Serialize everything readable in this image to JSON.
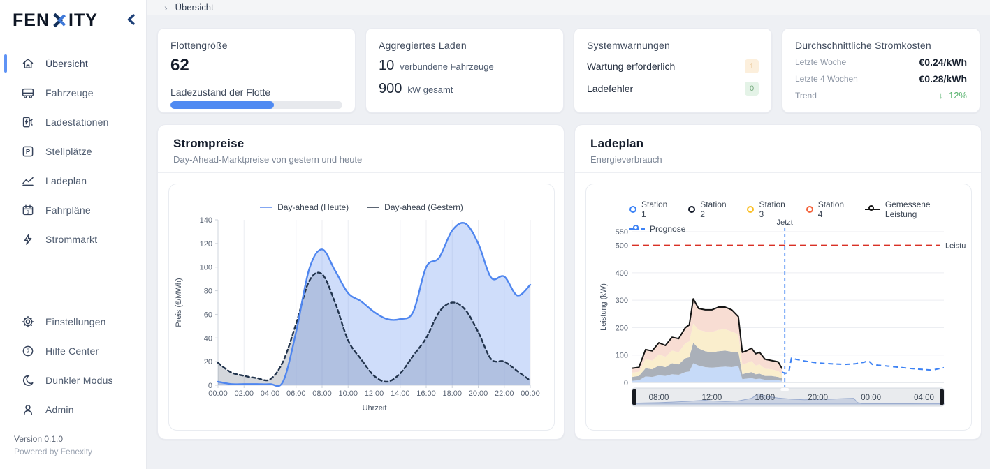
{
  "colors": {
    "accent_blue": "#4f8af2",
    "active_indicator": "#5f93f5",
    "badge_warn_bg": "#fcefdc",
    "badge_warn_fg": "#d79b4a",
    "badge_ok_bg": "#e4f3e7",
    "badge_ok_fg": "#74a87c",
    "trend_green": "#57b26d",
    "limit_red": "#d93025"
  },
  "sidebar": {
    "logo_left": "FEN",
    "logo_right": "ITY",
    "menu": [
      {
        "icon": "home-icon",
        "label": "Übersicht",
        "active": true
      },
      {
        "icon": "bus-icon",
        "label": "Fahrzeuge",
        "active": false
      },
      {
        "icon": "charging-station-icon",
        "label": "Ladestationen",
        "active": false
      },
      {
        "icon": "parking-icon",
        "label": "Stellplätze",
        "active": false
      },
      {
        "icon": "area-chart-icon",
        "label": "Ladeplan",
        "active": false
      },
      {
        "icon": "calendar-icon",
        "label": "Fahrpläne",
        "active": false
      },
      {
        "icon": "bolt-icon",
        "label": "Strommarkt",
        "active": false
      }
    ],
    "footer_menu": [
      {
        "icon": "gear-icon",
        "label": "Einstellungen"
      },
      {
        "icon": "help-icon",
        "label": "Hilfe Center"
      },
      {
        "icon": "moon-icon",
        "label": "Dunkler Modus"
      },
      {
        "icon": "user-icon",
        "label": "Admin"
      }
    ],
    "version": "Version 0.1.0",
    "powered": "Powered by Fenexity"
  },
  "topbar": {
    "breadcrumb": "Übersicht"
  },
  "cards": {
    "fleet": {
      "title": "Flottengröße",
      "value": "62",
      "progress_label": "Ladezustand der Flotte",
      "progress_css": "60%"
    },
    "charging": {
      "title": "Aggregiertes Laden",
      "vehicles_value": "10",
      "vehicles_label": "verbundene Fahrzeuge",
      "power_value": "900",
      "power_label": "kW gesamt"
    },
    "warnings": {
      "title": "Systemwarnungen",
      "rows": [
        {
          "label": "Wartung erforderlich",
          "value": "1",
          "type": "warn"
        },
        {
          "label": "Ladefehler",
          "value": "0",
          "type": "ok"
        }
      ]
    },
    "costs": {
      "title": "Durchschnittliche Stromkosten",
      "rows": [
        {
          "label": "Letzte Woche",
          "value": "€0.24/kWh"
        },
        {
          "label": "Letzte 4 Wochen",
          "value": "€0.28/kWh"
        }
      ],
      "trend_label": "Trend",
      "trend_value": "↓ -12%"
    }
  },
  "price_chart": {
    "title": "Strompreise",
    "subtitle": "Day-Ahead-Marktpreise von gestern und heute"
  },
  "load_chart": {
    "title": "Ladeplan",
    "subtitle": "Energieverbrauch"
  },
  "chart_data": [
    {
      "id": "strompreise",
      "type": "area",
      "title": "Strompreise",
      "xlabel": "Uhrzeit",
      "ylabel": "Preis (€/MWh)",
      "ylim": [
        0,
        140
      ],
      "y_ticks": [
        0,
        20,
        40,
        60,
        80,
        100,
        120,
        140
      ],
      "x": [
        0,
        1,
        2,
        3,
        4,
        5,
        6,
        7,
        8,
        9,
        10,
        11,
        12,
        13,
        14,
        15,
        16,
        17,
        18,
        19,
        20,
        21,
        22,
        23,
        24
      ],
      "x_ticks": [
        0,
        2,
        4,
        6,
        8,
        10,
        12,
        14,
        16,
        18,
        20,
        22,
        24
      ],
      "x_tick_labels": [
        "00:00",
        "02:00",
        "04:00",
        "06:00",
        "08:00",
        "10:00",
        "12:00",
        "14:00",
        "16:00",
        "18:00",
        "20:00",
        "22:00",
        "00:00"
      ],
      "grid": "vertical",
      "legend_position": "top",
      "series": [
        {
          "name": "Day-ahead (Heute)",
          "color": "#4f86ef",
          "swatch": "#84a7f2",
          "fill": "rgba(96,143,240,0.30)",
          "dash": "none",
          "values": [
            3,
            1,
            1,
            1,
            1,
            3,
            45,
            98,
            115,
            97,
            78,
            71,
            62,
            56,
            56,
            62,
            100,
            108,
            131,
            137,
            120,
            91,
            92,
            76,
            85
          ]
        },
        {
          "name": "Day-ahead (Gestern)",
          "color": "#22344d",
          "swatch": "#5b6573",
          "fill": "rgba(100,112,130,0.28)",
          "dash": "5 4",
          "values": [
            19,
            11,
            8,
            6,
            5,
            20,
            52,
            88,
            94,
            70,
            38,
            22,
            8,
            3,
            10,
            25,
            40,
            62,
            70,
            64,
            45,
            22,
            20,
            12,
            4
          ]
        }
      ]
    },
    {
      "id": "ladeplan",
      "type": "area-stacked",
      "ylabel": "Leistung (kW)",
      "ylim": [
        0,
        560
      ],
      "y_ticks": [
        0,
        100,
        200,
        300,
        400,
        500,
        550
      ],
      "x_range": [
        6,
        29.5
      ],
      "x_ticks": [
        8,
        12,
        16,
        20,
        24,
        28
      ],
      "x_tick_labels": [
        "08:00",
        "12:00",
        "16:00",
        "20:00",
        "00:00",
        "04:00"
      ],
      "now_x": 17.5,
      "now_label": "Jetzt",
      "now_color": "#3d82f4",
      "limit_y": 500,
      "limit_label": "Leistu",
      "limit_color": "#d93025",
      "stack_x": [
        6,
        6.5,
        7,
        7.5,
        8,
        8.5,
        9,
        9.5,
        10,
        10.3,
        10.6,
        11,
        11.5,
        12,
        12.5,
        13,
        13.5,
        14,
        14.3,
        14.6,
        15,
        15.3,
        15.6,
        16,
        16.5,
        17,
        17.3
      ],
      "stacked_series": [
        {
          "name": "Station 1",
          "color": "#3b82f6",
          "fill": "#c6daf8",
          "values": [
            6,
            8,
            22,
            20,
            26,
            24,
            30,
            28,
            38,
            40,
            70,
            62,
            56,
            54,
            56,
            58,
            56,
            60,
            12,
            14,
            16,
            12,
            14,
            10,
            10,
            8,
            6
          ]
        },
        {
          "name": "Station 2",
          "color": "#111827",
          "fill": "#aab0b9",
          "values": [
            14,
            16,
            30,
            28,
            36,
            32,
            40,
            38,
            50,
            52,
            75,
            62,
            58,
            56,
            58,
            58,
            56,
            52,
            18,
            20,
            22,
            18,
            18,
            14,
            14,
            12,
            9
          ]
        },
        {
          "name": "Station 3",
          "color": "#fbbf24",
          "fill": "#faeecd",
          "values": [
            16,
            15,
            34,
            32,
            40,
            38,
            46,
            44,
            55,
            58,
            70,
            68,
            72,
            74,
            78,
            78,
            74,
            64,
            34,
            36,
            40,
            32,
            34,
            26,
            24,
            22,
            15
          ]
        },
        {
          "name": "Station 4",
          "color": "#f4623a",
          "fill": "#f8ddd3",
          "values": [
            16,
            16,
            34,
            35,
            43,
            41,
            49,
            50,
            57,
            60,
            90,
            78,
            79,
            81,
            83,
            81,
            79,
            64,
            46,
            45,
            47,
            43,
            44,
            35,
            32,
            33,
            20
          ]
        }
      ],
      "measured": {
        "name": "Gemessene Leistung",
        "color": "#151515"
      },
      "forecast": {
        "name": "Prognose",
        "color": "#3d82f4",
        "x": [
          17.3,
          17.5,
          17.8,
          18,
          18.4,
          19,
          20,
          21,
          22,
          22.8,
          23.5,
          23.8,
          24.1,
          24.5,
          25,
          26,
          27,
          28,
          28.6,
          29,
          29.5
        ],
        "values": [
          38,
          33,
          36,
          88,
          84,
          78,
          71,
          68,
          66,
          68,
          74,
          80,
          66,
          63,
          61,
          56,
          51,
          47,
          45,
          49,
          54
        ]
      },
      "brush_preview": {
        "x": [
          6,
          7,
          8,
          9,
          10,
          11,
          11.5,
          12,
          13,
          14,
          15,
          15.5,
          16,
          17,
          18,
          19,
          20,
          21,
          22,
          22.7,
          23,
          23.3,
          24,
          25,
          26,
          27,
          28,
          29,
          29.5
        ],
        "values": [
          6,
          8,
          10,
          14,
          18,
          24,
          26,
          22,
          18,
          22,
          40,
          70,
          55,
          42,
          34,
          30,
          32,
          34,
          38,
          40,
          10,
          5,
          5,
          5,
          5,
          5,
          6,
          6,
          6
        ]
      }
    }
  ]
}
